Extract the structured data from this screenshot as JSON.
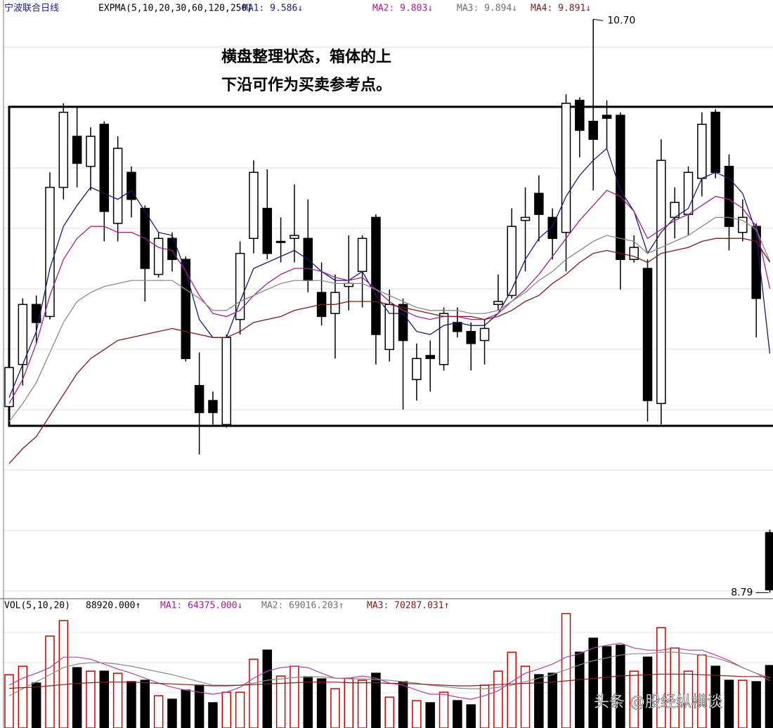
{
  "chart_data": [
    {
      "type": "candlestick",
      "title": "宁波联合日线",
      "header": [
        {
          "text": "EXPMA(5,10,20,30,60,120,250)",
          "color": "#000000"
        },
        {
          "text": "MA1: 9.586↓",
          "color": "#1a1a8c"
        },
        {
          "text": "MA2: 9.803↓",
          "color": "#a0208e"
        },
        {
          "text": "MA3: 9.894↓",
          "color": "#707070"
        },
        {
          "text": "MA4: 9.891↓",
          "color": "#7a1a1a"
        }
      ],
      "annotation_lines": [
        "横盘整理状态，箱体的上",
        "下沿可作为买卖参考点。"
      ],
      "open": [
        9.41,
        9.55,
        9.75,
        9.71,
        10.14,
        10.31,
        10.21,
        10.35,
        10.02,
        10.19,
        10.07,
        9.85,
        9.97,
        9.9,
        9.48,
        9.43,
        9.35,
        9.7,
        9.97,
        10.07,
        9.96,
        9.97,
        9.97,
        9.79,
        9.72,
        9.81,
        9.86,
        10.04,
        9.6,
        9.75,
        9.5,
        9.58,
        9.55,
        9.69,
        9.66,
        9.63,
        9.75,
        9.78,
        10.03,
        10.12,
        10.04,
        9.99,
        10.43,
        10.36,
        10.38,
        10.38,
        9.9,
        9.87,
        9.42,
        10.04,
        10.05,
        10.17,
        10.39,
        10.21,
        9.99,
        10.01,
        8.99
      ],
      "high": [
        9.55,
        9.77,
        9.78,
        10.19,
        10.42,
        10.41,
        10.34,
        10.36,
        10.31,
        10.21,
        10.08,
        9.99,
        9.99,
        9.91,
        9.59,
        9.46,
        9.65,
        9.96,
        10.23,
        10.2,
        10.04,
        10.15,
        10.1,
        9.89,
        9.85,
        9.98,
        9.98,
        10.05,
        9.8,
        9.77,
        9.62,
        9.63,
        9.74,
        9.74,
        9.69,
        9.7,
        9.85,
        10.07,
        10.14,
        10.18,
        10.07,
        10.45,
        10.44,
        10.7,
        10.43,
        10.39,
        9.98,
        9.9,
        10.3,
        10.14,
        10.21,
        10.39,
        10.4,
        10.25,
        10.1,
        10.02,
        9.0
      ],
      "low": [
        9.4,
        9.48,
        9.62,
        9.7,
        10.1,
        10.14,
        10.13,
        9.96,
        9.96,
        10.04,
        9.76,
        9.84,
        9.86,
        9.56,
        9.25,
        9.35,
        9.34,
        9.65,
        9.92,
        9.9,
        9.89,
        9.89,
        9.79,
        9.68,
        9.57,
        9.73,
        9.74,
        9.55,
        9.56,
        9.4,
        9.43,
        9.46,
        9.53,
        9.64,
        9.53,
        9.55,
        9.73,
        9.77,
        9.86,
        9.96,
        9.9,
        9.86,
        10.24,
        10.13,
        10.27,
        9.8,
        9.89,
        9.36,
        9.35,
        9.97,
        9.98,
        10.11,
        10.17,
        9.93,
        9.96,
        9.64,
        8.79
      ],
      "close": [
        9.54,
        9.75,
        9.69,
        10.14,
        10.39,
        10.22,
        10.31,
        10.06,
        10.27,
        10.1,
        9.87,
        9.97,
        9.9,
        9.57,
        9.39,
        9.39,
        9.64,
        9.92,
        10.19,
        9.92,
        9.96,
        9.98,
        9.83,
        9.71,
        9.79,
        9.82,
        9.97,
        9.65,
        9.75,
        9.63,
        9.57,
        9.57,
        9.72,
        9.66,
        9.62,
        9.67,
        9.76,
        10.01,
        10.04,
        10.05,
        9.97,
        10.42,
        10.33,
        10.3,
        10.37,
        9.9,
        9.94,
        9.43,
        10.23,
        10.09,
        10.19,
        10.35,
        10.19,
        10.01,
        10.04,
        9.77,
        8.8
      ],
      "series": [
        {
          "color": "#1a1a6e",
          "values": [
            9.44,
            9.55,
            9.66,
            9.87,
            10.01,
            10.08,
            10.14,
            10.12,
            10.1,
            10.13,
            10.06,
            9.99,
            9.98,
            9.86,
            9.7,
            9.64,
            9.64,
            9.76,
            9.87,
            9.89,
            9.91,
            9.93,
            9.9,
            9.86,
            9.83,
            9.83,
            9.86,
            9.78,
            9.72,
            9.72,
            9.66,
            9.65,
            9.68,
            9.69,
            9.68,
            9.68,
            9.72,
            9.8,
            9.9,
            9.97,
            10.01,
            10.11,
            10.18,
            10.23,
            10.27,
            10.13,
            10.06,
            9.92,
            9.99,
            10.04,
            10.07,
            10.17,
            10.19,
            10.17,
            10.12,
            9.99,
            9.586
          ]
        },
        {
          "color": "#a0208e",
          "values": [
            9.42,
            9.5,
            9.62,
            9.78,
            9.9,
            9.97,
            10.01,
            10.01,
            9.99,
            9.99,
            9.97,
            9.94,
            9.93,
            9.86,
            9.78,
            9.72,
            9.71,
            9.73,
            9.78,
            9.82,
            9.85,
            9.87,
            9.87,
            9.86,
            9.84,
            9.83,
            9.84,
            9.8,
            9.76,
            9.73,
            9.71,
            9.7,
            9.71,
            9.71,
            9.7,
            9.7,
            9.72,
            9.76,
            9.8,
            9.85,
            9.91,
            9.97,
            10.03,
            10.08,
            10.13,
            10.11,
            10.06,
            9.97,
            10.0,
            10.03,
            10.05,
            10.08,
            10.11,
            10.1,
            10.07,
            10.01,
            9.803
          ]
        },
        {
          "color": "#8a8a8a",
          "values": [
            9.36,
            9.42,
            9.49,
            9.59,
            9.69,
            9.76,
            9.79,
            9.81,
            9.82,
            9.83,
            9.83,
            9.83,
            9.83,
            9.8,
            9.77,
            9.73,
            9.73,
            9.76,
            9.78,
            9.8,
            9.82,
            9.83,
            9.83,
            9.83,
            9.82,
            9.82,
            9.82,
            9.8,
            9.78,
            9.76,
            9.74,
            9.73,
            9.73,
            9.73,
            9.72,
            9.72,
            9.73,
            9.76,
            9.79,
            9.83,
            9.86,
            9.9,
            9.93,
            9.96,
            9.98,
            9.97,
            9.96,
            9.92,
            9.94,
            9.96,
            9.98,
            10.01,
            10.04,
            10.04,
            10.03,
            10.0,
            9.894
          ]
        },
        {
          "color": "#7a1a1a",
          "values": [
            9.22,
            9.27,
            9.31,
            9.38,
            9.45,
            9.52,
            9.57,
            9.6,
            9.63,
            9.64,
            9.65,
            9.66,
            9.67,
            9.66,
            9.65,
            9.64,
            9.64,
            9.66,
            9.69,
            9.7,
            9.71,
            9.73,
            9.74,
            9.75,
            9.75,
            9.76,
            9.76,
            9.76,
            9.75,
            9.74,
            9.73,
            9.72,
            9.71,
            9.71,
            9.71,
            9.7,
            9.71,
            9.73,
            9.76,
            9.78,
            9.82,
            9.85,
            9.89,
            9.92,
            9.93,
            9.92,
            9.91,
            9.89,
            9.92,
            9.93,
            9.94,
            9.96,
            9.97,
            9.97,
            9.97,
            9.96,
            9.891
          ]
        }
      ],
      "annotations": [
        {
          "value": 10.7,
          "label": "10.70"
        },
        {
          "value": 8.79,
          "label": "8.79"
        }
      ],
      "ylim": [
        8.77,
        10.75
      ]
    },
    {
      "type": "bar",
      "header": [
        {
          "text": "VOL(5,10,20)",
          "color": "#000000"
        },
        {
          "text": "88920.000↑",
          "color": "#000000"
        },
        {
          "text": "MA1: 64375.000↓",
          "color": "#a0208e"
        },
        {
          "text": "MA2: 69016.203↑",
          "color": "#707070"
        },
        {
          "text": "MA3: 70287.031↑",
          "color": "#7a1a1a"
        }
      ],
      "values": [
        74100,
        87780,
        60420,
        136800,
        161880,
        85500,
        79800,
        79800,
        76380,
        62700,
        64980,
        39900,
        34200,
        49020,
        57000,
        28500,
        45600,
        45600,
        99180,
        114000,
        71820,
        87780,
        70680,
        67260,
        51300,
        68400,
        64980,
        76380,
        37620,
        62700,
        31920,
        28500,
        45600,
        31920,
        25080,
        57000,
        79800,
        110580,
        87780,
        74100,
        76380,
        173280,
        110580,
        133380,
        119700,
        121980,
        79800,
        102600,
        150480,
        117420,
        79800,
        106020,
        87780,
        64980,
        64980,
        62700,
        88920
      ],
      "up_color": "#cc0000",
      "down_color": "#000000",
      "series": [
        {
          "color": "#b040a0",
          "values": [
            57000,
            68400,
            76400,
            85500,
            102600,
            102600,
            99200,
            91200,
            83200,
            76400,
            68400,
            60400,
            53600,
            49000,
            45600,
            42200,
            45600,
            53600,
            68400,
            79800,
            85500,
            87800,
            85500,
            76400,
            68400,
            68400,
            71800,
            68400,
            60400,
            57000,
            49000,
            42200,
            42200,
            37600,
            34200,
            39900,
            47900,
            62700,
            76400,
            83200,
            91200,
            102600,
            108300,
            117400,
            122000,
            125400,
            117400,
            114000,
            114000,
            117400,
            114000,
            114000,
            106000,
            96900,
            85500,
            76400,
            64375
          ]
        },
        {
          "color": "#8a8a8a",
          "values": [
            39900,
            51300,
            62700,
            74100,
            85500,
            91200,
            93500,
            93500,
            91200,
            87800,
            83200,
            78700,
            74100,
            68400,
            62700,
            57000,
            57000,
            57000,
            60400,
            65000,
            67300,
            69500,
            70700,
            70700,
            68400,
            67300,
            67300,
            66100,
            65000,
            62700,
            60400,
            57000,
            54700,
            52400,
            51300,
            51300,
            53600,
            57000,
            62700,
            68400,
            74100,
            82100,
            90100,
            96900,
            101500,
            106000,
            108300,
            108300,
            110600,
            110600,
            108300,
            106000,
            101500,
            94600,
            85500,
            76400,
            69016.203
          ]
        },
        {
          "color": "#8b1a1a",
          "values": [
            52000,
            53000,
            54000,
            56000,
            58000,
            60000,
            61000,
            62000,
            62000,
            62000,
            61000,
            60000,
            59000,
            58000,
            57000,
            56000,
            56000,
            57000,
            58000,
            59000,
            60000,
            61000,
            62000,
            62000,
            62000,
            61000,
            61000,
            61000,
            60000,
            60000,
            59000,
            58000,
            57000,
            56000,
            56000,
            57000,
            58000,
            59000,
            60000,
            61000,
            62000,
            64000,
            66000,
            68000,
            70000,
            72000,
            73000,
            74000,
            75000,
            75000,
            75000,
            74000,
            73000,
            72000,
            71000,
            71000,
            70287.031
          ]
        }
      ],
      "ylim": [
        0,
        177000
      ]
    }
  ],
  "watermark": "头条 @股经纵横谈"
}
